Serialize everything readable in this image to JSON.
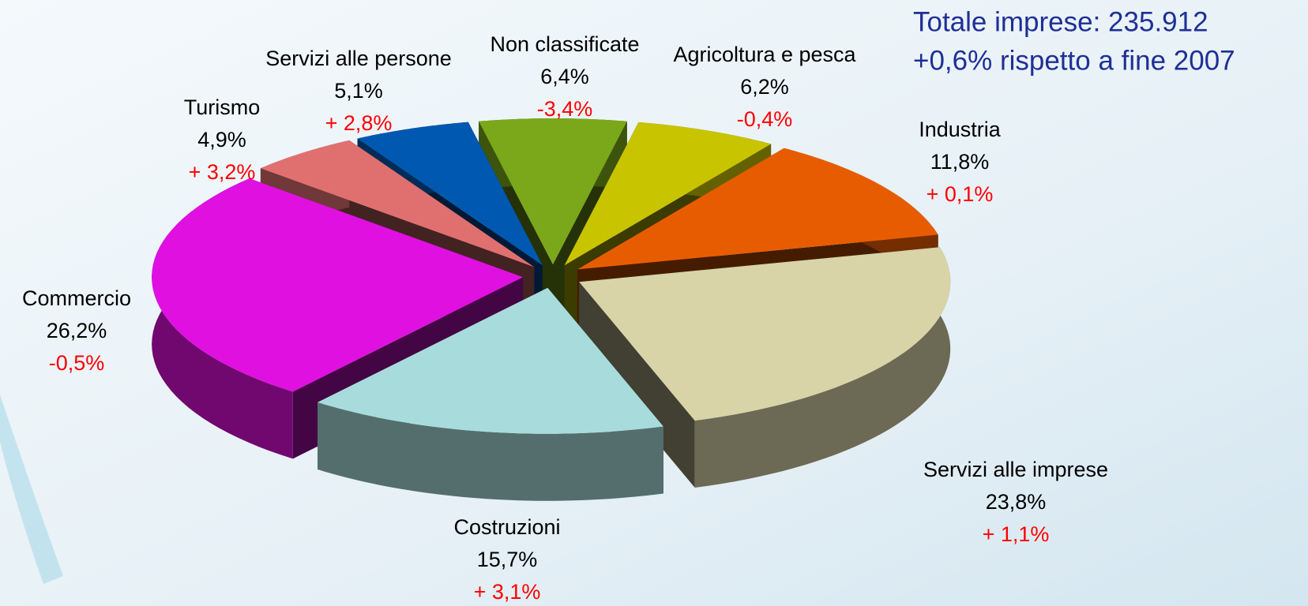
{
  "chart_data": {
    "type": "pie3d",
    "title_lines": [
      "Totale imprese: 235.912",
      "+0,6% rispetto a fine 2007"
    ],
    "categories": [
      "Non classificate",
      "Agricoltura e pesca",
      "Industria",
      "Servizi alle imprese",
      "Costruzioni",
      "Commercio",
      "Turismo",
      "Servizi alle persone"
    ],
    "values": [
      6.4,
      6.2,
      11.8,
      23.8,
      15.7,
      26.2,
      4.9,
      5.1
    ],
    "value_labels": [
      "6,4%",
      "6,2%",
      "11,8%",
      "23,8%",
      "15,7%",
      "26,2%",
      "4,9%",
      "5,1%"
    ],
    "changes": [
      -3.4,
      -0.4,
      0.1,
      1.1,
      3.1,
      -0.5,
      3.2,
      2.8
    ],
    "change_labels": [
      "-3,4%",
      "-0,4%",
      "+ 0,1%",
      "+ 1,1%",
      "+ 3,1%",
      "-0,5%",
      "+ 3,2%",
      "+ 2,8%"
    ],
    "colors": [
      "#7aa81a",
      "#c8c400",
      "#e85c00",
      "#d8d4a8",
      "#a8dcdc",
      "#e010e0",
      "#e07070",
      "#0058b0"
    ],
    "change_color": "#ff0000"
  }
}
